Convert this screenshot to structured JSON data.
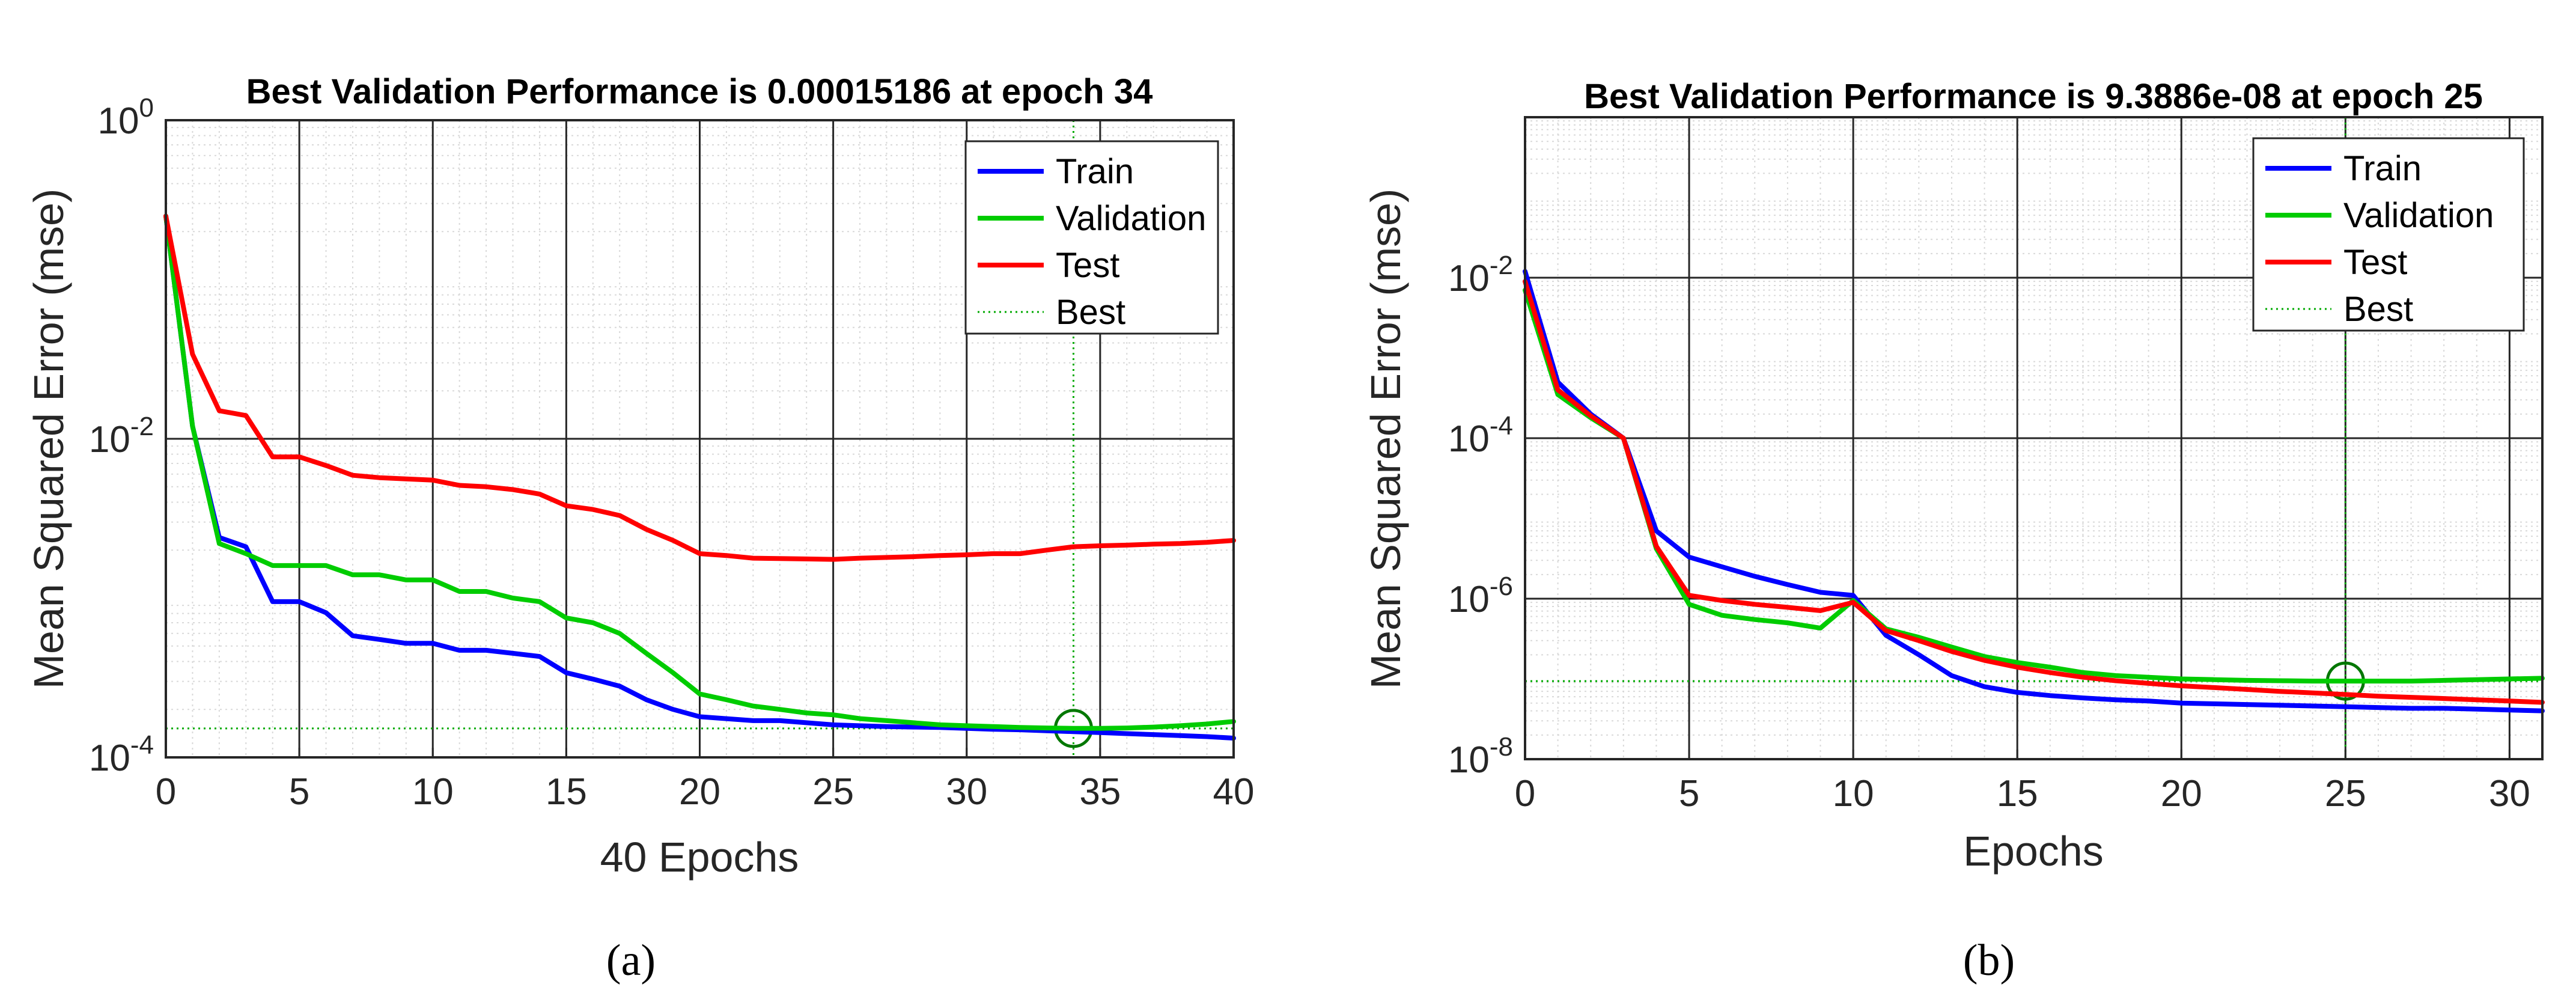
{
  "chart_data": [
    {
      "type": "line",
      "yscale": "log",
      "caption": "(a)",
      "title": "Best Validation Performance is 0.00015186 at epoch 34",
      "xlabel": "40 Epochs",
      "ylabel": "Mean Squared Error  (mse)",
      "xlim": [
        0,
        40
      ],
      "ylim": [
        0.0001,
        1
      ],
      "xticks": [
        0,
        5,
        10,
        15,
        20,
        25,
        30,
        35,
        40
      ],
      "xtick_labels": [
        "0",
        "5",
        "10",
        "15",
        "20",
        "25",
        "30",
        "35",
        "40"
      ],
      "yticks": [
        0.0001,
        0.01,
        1
      ],
      "ytick_labels": [
        {
          "base": "10",
          "exp": "-4"
        },
        {
          "base": "10",
          "exp": "-2"
        },
        {
          "base": "10",
          "exp": "0"
        }
      ],
      "grid": true,
      "legend_position": "top-right",
      "legend": [
        "Train",
        "Validation",
        "Test",
        "Best"
      ],
      "best": {
        "epoch": 34,
        "value": 0.00015186
      },
      "series": [
        {
          "name": "Train",
          "color": "#0000ff",
          "x": [
            0,
            1,
            2,
            3,
            4,
            5,
            6,
            7,
            8,
            9,
            10,
            11,
            12,
            13,
            14,
            15,
            16,
            17,
            18,
            19,
            20,
            21,
            22,
            23,
            24,
            25,
            26,
            27,
            28,
            29,
            30,
            31,
            32,
            33,
            34,
            35,
            36,
            37,
            38,
            39,
            40
          ],
          "values": [
            0.25,
            0.012,
            0.0024,
            0.0021,
            0.00095,
            0.00095,
            0.00081,
            0.00058,
            0.00055,
            0.00052,
            0.00052,
            0.00047,
            0.00047,
            0.00045,
            0.00043,
            0.00034,
            0.00031,
            0.00028,
            0.00023,
            0.0002,
            0.00018,
            0.000175,
            0.00017,
            0.00017,
            0.000165,
            0.00016,
            0.000158,
            0.000156,
            0.000155,
            0.000154,
            0.000152,
            0.00015,
            0.000149,
            0.000147,
            0.000145,
            0.000143,
            0.000141,
            0.000139,
            0.000137,
            0.000135,
            0.000132
          ]
        },
        {
          "name": "Validation",
          "color": "#00cc00",
          "x": [
            0,
            1,
            2,
            3,
            4,
            5,
            6,
            7,
            8,
            9,
            10,
            11,
            12,
            13,
            14,
            15,
            16,
            17,
            18,
            19,
            20,
            21,
            22,
            23,
            24,
            25,
            26,
            27,
            28,
            29,
            30,
            31,
            32,
            33,
            34,
            35,
            36,
            37,
            38,
            39,
            40
          ],
          "values": [
            0.25,
            0.012,
            0.0022,
            0.0019,
            0.0016,
            0.0016,
            0.0016,
            0.0014,
            0.0014,
            0.0013,
            0.0013,
            0.0011,
            0.0011,
            0.001,
            0.00095,
            0.00075,
            0.0007,
            0.0006,
            0.00045,
            0.00034,
            0.00025,
            0.00023,
            0.00021,
            0.0002,
            0.00019,
            0.000185,
            0.000175,
            0.00017,
            0.000165,
            0.00016,
            0.000158,
            0.000156,
            0.000154,
            0.000153,
            0.000152,
            0.000152,
            0.000153,
            0.000155,
            0.000158,
            0.000162,
            0.000168
          ]
        },
        {
          "name": "Test",
          "color": "#ff0000",
          "x": [
            0,
            1,
            2,
            3,
            4,
            5,
            6,
            7,
            8,
            9,
            10,
            11,
            12,
            13,
            14,
            15,
            16,
            17,
            18,
            19,
            20,
            21,
            22,
            23,
            24,
            25,
            26,
            27,
            28,
            29,
            30,
            31,
            32,
            33,
            34,
            35,
            36,
            37,
            38,
            39,
            40
          ],
          "values": [
            0.25,
            0.034,
            0.015,
            0.014,
            0.0077,
            0.0077,
            0.0068,
            0.0059,
            0.0057,
            0.0056,
            0.0055,
            0.0051,
            0.005,
            0.0048,
            0.0045,
            0.0038,
            0.0036,
            0.0033,
            0.0027,
            0.0023,
            0.0019,
            0.00185,
            0.00178,
            0.00177,
            0.00176,
            0.00175,
            0.00178,
            0.0018,
            0.00182,
            0.00185,
            0.00187,
            0.0019,
            0.0019,
            0.002,
            0.0021,
            0.00213,
            0.00215,
            0.00218,
            0.0022,
            0.00224,
            0.0023
          ]
        }
      ]
    },
    {
      "type": "line",
      "yscale": "log",
      "caption": "(b)",
      "title": "Best Validation Performance is 9.3886e-08 at epoch 25",
      "xlabel": "Epochs",
      "ylabel": "Mean Squared Error  (mse)",
      "xlim": [
        0,
        31
      ],
      "ylim": [
        1e-08,
        1
      ],
      "xticks": [
        0,
        5,
        10,
        15,
        20,
        25,
        30
      ],
      "xtick_labels": [
        "0",
        "5",
        "10",
        "15",
        "20",
        "25",
        "30"
      ],
      "yticks": [
        1e-08,
        1e-06,
        0.0001,
        0.01
      ],
      "ytick_labels": [
        {
          "base": "10",
          "exp": "-8"
        },
        {
          "base": "10",
          "exp": "-6"
        },
        {
          "base": "10",
          "exp": "-4"
        },
        {
          "base": "10",
          "exp": "-2"
        }
      ],
      "grid": true,
      "legend_position": "top-right",
      "legend": [
        "Train",
        "Validation",
        "Test",
        "Best"
      ],
      "best": {
        "epoch": 25,
        "value": 9.3886e-08
      },
      "series": [
        {
          "name": "Train",
          "color": "#0000ff",
          "x": [
            0,
            1,
            2,
            3,
            4,
            5,
            6,
            7,
            8,
            9,
            10,
            11,
            12,
            13,
            14,
            15,
            16,
            17,
            18,
            19,
            20,
            21,
            22,
            23,
            24,
            25,
            26,
            27,
            28,
            29,
            30,
            31
          ],
          "values": [
            0.012,
            0.0005,
            0.0002,
            0.0001,
            7e-06,
            3.3e-06,
            2.5e-06,
            1.9e-06,
            1.5e-06,
            1.2e-06,
            1.1e-06,
            3.5e-07,
            2e-07,
            1.1e-07,
            8e-08,
            6.8e-08,
            6.2e-08,
            5.8e-08,
            5.5e-08,
            5.3e-08,
            5e-08,
            4.9e-08,
            4.8e-08,
            4.7e-08,
            4.6e-08,
            4.5e-08,
            4.4e-08,
            4.3e-08,
            4.3e-08,
            4.2e-08,
            4.1e-08,
            4e-08
          ]
        },
        {
          "name": "Validation",
          "color": "#00cc00",
          "x": [
            0,
            1,
            2,
            3,
            4,
            5,
            6,
            7,
            8,
            9,
            10,
            11,
            12,
            13,
            14,
            15,
            16,
            17,
            18,
            19,
            20,
            21,
            22,
            23,
            24,
            25,
            26,
            27,
            28,
            29,
            30,
            31
          ],
          "values": [
            0.007,
            0.00035,
            0.00018,
            0.0001,
            4.2e-06,
            8.5e-07,
            6.2e-07,
            5.5e-07,
            5e-07,
            4.3e-07,
            9.5e-07,
            4.2e-07,
            3.3e-07,
            2.5e-07,
            1.9e-07,
            1.6e-07,
            1.4e-07,
            1.2e-07,
            1.1e-07,
            1.05e-07,
            1e-07,
            9.8e-08,
            9.6e-08,
            9.5e-08,
            9.4e-08,
            9.4e-08,
            9.4e-08,
            9.4e-08,
            9.6e-08,
            9.8e-08,
            1e-07,
            1.02e-07
          ]
        },
        {
          "name": "Test",
          "color": "#ff0000",
          "x": [
            0,
            1,
            2,
            3,
            4,
            5,
            6,
            7,
            8,
            9,
            10,
            11,
            12,
            13,
            14,
            15,
            16,
            17,
            18,
            19,
            20,
            21,
            22,
            23,
            24,
            25,
            26,
            27,
            28,
            29,
            30,
            31
          ],
          "values": [
            0.009,
            0.0004,
            0.00019,
            0.0001,
            4.5e-06,
            1.1e-06,
            9.5e-07,
            8.5e-07,
            7.8e-07,
            7.1e-07,
            9e-07,
            4e-07,
            3e-07,
            2.2e-07,
            1.7e-07,
            1.4e-07,
            1.2e-07,
            1.05e-07,
            9.5e-08,
            8.8e-08,
            8.2e-08,
            7.8e-08,
            7.4e-08,
            7e-08,
            6.7e-08,
            6.4e-08,
            6.1e-08,
            5.9e-08,
            5.7e-08,
            5.5e-08,
            5.3e-08,
            5.1e-08
          ]
        }
      ]
    }
  ]
}
